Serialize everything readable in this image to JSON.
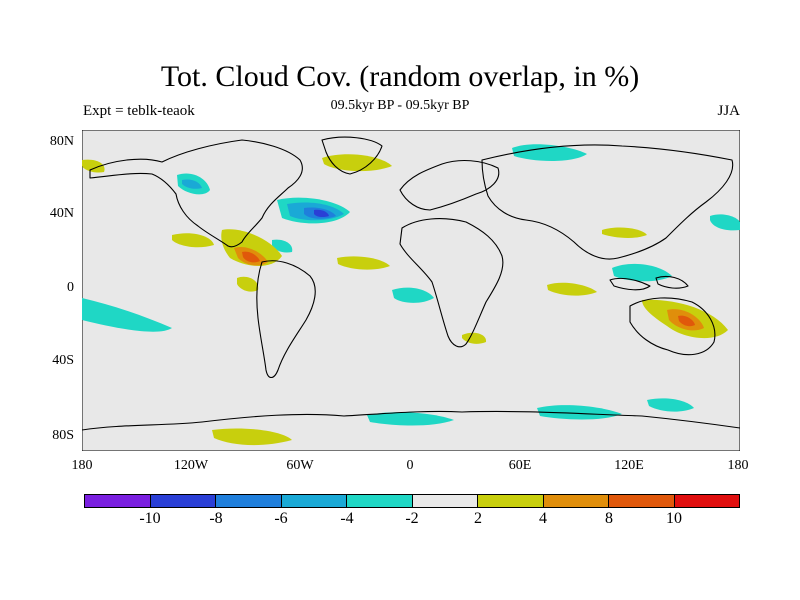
{
  "title": "Tot. Cloud Cov. (random overlap, in %)",
  "subtitle": "09.5kyr BP - 09.5kyr BP",
  "left_label": "Expt = teblk-teaok",
  "right_label": "JJA",
  "latitude_labels": [
    "80N",
    "40N",
    "0",
    "40S",
    "80S"
  ],
  "longitude_labels": [
    "180",
    "120W",
    "60W",
    "0",
    "60E",
    "120E",
    "180"
  ],
  "colorbar": {
    "levels": [
      "-10",
      "-8",
      "-6",
      "-4",
      "-2",
      "2",
      "4",
      "8",
      "10"
    ],
    "colors": [
      "#7a1fe0",
      "#2a3fd6",
      "#1f7fdc",
      "#1aa9d6",
      "#1fd7c5",
      "#e9e9e9",
      "#c8cf0d",
      "#e08e0b",
      "#e0580b",
      "#e00f0f"
    ]
  },
  "palette": {
    "ocean": "#e8e8e8",
    "coast": "#000000"
  }
}
